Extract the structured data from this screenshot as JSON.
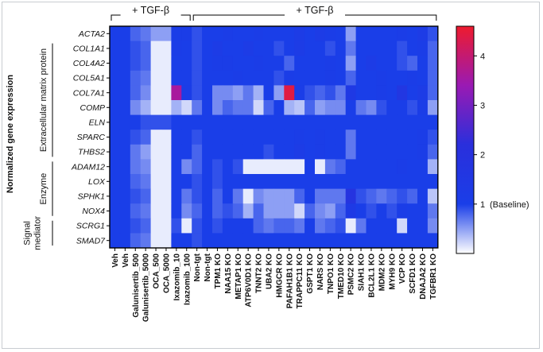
{
  "chart_data": {
    "type": "heatmap",
    "title": "",
    "ylabel": "Normalized gene expression",
    "treatment_label": "+ TGF-β",
    "rows": [
      "ACTA2",
      "COL1A1",
      "COL4A2",
      "COL5A1",
      "COL7A1",
      "COMP",
      "ELN",
      "SPARC",
      "THBS2",
      "ADAM12",
      "LOX",
      "SPHK1",
      "NOX4",
      "SCRG1",
      "SMAD7"
    ],
    "row_groups": [
      {
        "label": "Extracellular matrix protein",
        "rows": [
          "COL1A1",
          "COL4A2",
          "COL5A1",
          "COL7A1",
          "COMP",
          "ELN",
          "SPARC",
          "THBS2"
        ]
      },
      {
        "label": "Enzyme",
        "rows": [
          "ADAM12",
          "LOX",
          "SPHK1",
          "NOX4"
        ]
      },
      {
        "label": "Signal mediator",
        "rows": [
          "SCRG1",
          "SMAD7"
        ]
      }
    ],
    "columns": [
      "Veh",
      "Veh",
      "Galunisertib_500",
      "Galunisertib_5000",
      "OCA_500",
      "OCA_5000",
      "Ixazomib_10",
      "Ixazomib_100",
      "Non-tgt",
      "Non-tgt",
      "TPM1 KO",
      "NAA15 KO",
      "METAP1 KO",
      "ATP6V0D1 KO",
      "TNNT2 KO",
      "UBA2 KO",
      "HMGCR KO",
      "PAFAH1B1 KO",
      "TRAPPC11 KO",
      "GSPT1 KO",
      "NARS KO",
      "TNPO1 KO",
      "TMED10 KO",
      "PSMC2 KO",
      "SIAH1 KO",
      "BCL2L1 KO",
      "MDM2 KO",
      "MYH9 KO",
      "VCP KO",
      "SCFD1 KO",
      "DNAJA2 KO",
      "TGFBR1 KO"
    ],
    "brackets": [
      {
        "label": "+ TGF-β",
        "from": "Veh",
        "to": "Ixazomib_100"
      },
      {
        "label": "+ TGF-β",
        "from": "Non-tgt",
        "to": "TGFBR1 KO"
      }
    ],
    "values": [
      [
        1.0,
        1.0,
        0.8,
        0.7,
        0.5,
        0.5,
        1.1,
        1.1,
        0.9,
        1.0,
        1.0,
        1.1,
        1.0,
        1.0,
        1.1,
        1.0,
        1.0,
        1.0,
        1.2,
        1.0,
        1.2,
        1.1,
        1.0,
        0.5,
        1.0,
        1.0,
        1.0,
        1.0,
        1.1,
        1.0,
        1.2,
        0.9
      ],
      [
        1.0,
        1.0,
        0.9,
        0.8,
        0.1,
        0.1,
        1.1,
        1.0,
        0.9,
        1.0,
        1.2,
        1.0,
        1.0,
        1.2,
        1.0,
        1.0,
        0.9,
        1.0,
        1.2,
        1.0,
        1.0,
        0.9,
        1.0,
        0.7,
        1.0,
        1.0,
        1.0,
        1.0,
        0.9,
        1.0,
        1.1,
        0.8
      ],
      [
        1.0,
        1.0,
        0.9,
        0.8,
        0.1,
        0.1,
        1.0,
        1.0,
        0.9,
        1.0,
        1.1,
        1.1,
        1.0,
        1.0,
        1.1,
        1.0,
        1.0,
        0.8,
        1.0,
        1.0,
        1.0,
        1.1,
        1.0,
        0.5,
        1.0,
        1.2,
        1.0,
        1.0,
        0.9,
        0.8,
        1.0,
        0.8
      ],
      [
        1.0,
        1.0,
        0.8,
        0.7,
        0.1,
        0.1,
        1.0,
        1.0,
        0.9,
        1.0,
        1.0,
        1.0,
        1.1,
        1.0,
        1.0,
        1.0,
        0.9,
        1.1,
        1.0,
        1.0,
        1.0,
        1.1,
        1.0,
        0.8,
        1.0,
        1.0,
        1.1,
        1.0,
        1.0,
        1.1,
        1.0,
        0.8
      ],
      [
        1.0,
        1.0,
        0.8,
        0.6,
        0.1,
        0.1,
        3.6,
        1.1,
        0.9,
        1.0,
        0.6,
        0.6,
        0.5,
        0.7,
        0.4,
        1.0,
        0.5,
        4.4,
        1.1,
        0.9,
        0.8,
        0.9,
        0.7,
        1.4,
        1.0,
        1.0,
        1.1,
        1.0,
        1.6,
        1.0,
        1.2,
        0.8
      ],
      [
        1.0,
        1.0,
        0.6,
        0.4,
        0.1,
        0.1,
        0.4,
        0.2,
        0.7,
        1.0,
        0.6,
        0.8,
        0.7,
        0.7,
        0.2,
        0.8,
        1.0,
        0.4,
        0.3,
        0.8,
        0.5,
        0.6,
        0.6,
        1.0,
        0.7,
        0.6,
        0.9,
        1.0,
        1.0,
        0.9,
        1.1,
        0.5
      ],
      [
        1.0,
        1.0,
        1.0,
        0.9,
        0.9,
        0.9,
        1.0,
        1.0,
        1.0,
        1.0,
        1.0,
        1.0,
        1.0,
        1.0,
        1.0,
        1.0,
        1.0,
        1.0,
        1.0,
        1.0,
        1.0,
        1.0,
        1.0,
        1.0,
        1.0,
        1.0,
        1.0,
        1.0,
        1.0,
        1.0,
        1.0,
        1.0
      ],
      [
        1.0,
        1.0,
        0.9,
        0.8,
        0.1,
        0.1,
        1.0,
        1.0,
        0.9,
        1.0,
        1.0,
        1.0,
        1.0,
        1.0,
        1.0,
        1.0,
        1.0,
        1.0,
        1.1,
        1.0,
        1.1,
        1.0,
        1.0,
        0.7,
        1.0,
        1.0,
        1.0,
        1.0,
        1.0,
        1.0,
        1.1,
        0.9
      ],
      [
        1.0,
        1.0,
        0.7,
        0.5,
        0.1,
        0.1,
        1.0,
        1.0,
        0.8,
        1.0,
        1.0,
        1.0,
        1.0,
        1.0,
        1.0,
        0.9,
        1.0,
        1.0,
        1.2,
        1.0,
        1.1,
        1.0,
        1.0,
        0.7,
        1.0,
        1.0,
        1.0,
        1.0,
        1.0,
        1.0,
        1.1,
        0.8
      ],
      [
        1.0,
        1.0,
        0.7,
        0.6,
        0.1,
        0.1,
        1.0,
        0.6,
        0.8,
        1.0,
        0.9,
        1.0,
        0.9,
        0.1,
        0.1,
        0.1,
        0.1,
        0.1,
        0.1,
        1.0,
        0.1,
        0.7,
        0.8,
        1.0,
        1.0,
        1.0,
        1.0,
        1.0,
        1.1,
        1.0,
        1.0,
        0.4
      ],
      [
        1.0,
        1.0,
        0.8,
        0.7,
        0.1,
        0.1,
        1.0,
        1.0,
        0.9,
        1.0,
        0.9,
        1.0,
        1.0,
        1.0,
        1.0,
        1.0,
        1.0,
        1.0,
        1.0,
        1.0,
        1.0,
        1.0,
        1.0,
        1.0,
        1.0,
        1.0,
        1.0,
        1.0,
        1.0,
        1.0,
        1.0,
        1.0
      ],
      [
        1.0,
        1.0,
        0.9,
        0.8,
        0.1,
        0.1,
        1.0,
        0.7,
        0.9,
        1.0,
        0.8,
        1.0,
        0.7,
        0.1,
        0.6,
        0.5,
        0.5,
        0.5,
        0.8,
        1.0,
        0.7,
        0.7,
        0.7,
        1.8,
        0.9,
        0.8,
        0.7,
        0.8,
        0.9,
        0.8,
        1.0,
        0.3
      ],
      [
        1.0,
        1.0,
        0.8,
        0.7,
        0.1,
        0.1,
        1.0,
        0.6,
        0.8,
        1.0,
        0.8,
        0.9,
        0.8,
        0.4,
        0.8,
        0.5,
        0.5,
        0.5,
        0.2,
        0.8,
        0.6,
        0.5,
        0.8,
        1.3,
        1.0,
        0.9,
        1.0,
        0.9,
        1.1,
        1.0,
        1.0,
        0.7
      ],
      [
        1.0,
        1.0,
        0.9,
        0.8,
        0.1,
        0.1,
        0.9,
        0.1,
        0.9,
        1.0,
        0.9,
        1.0,
        1.0,
        1.0,
        0.8,
        0.7,
        0.8,
        0.8,
        0.7,
        1.0,
        0.7,
        0.8,
        0.9,
        0.1,
        0.7,
        1.0,
        1.0,
        1.0,
        0.2,
        1.0,
        1.0,
        0.6
      ],
      [
        1.0,
        1.0,
        0.8,
        0.7,
        0.1,
        0.1,
        1.0,
        1.0,
        0.9,
        1.0,
        1.0,
        1.0,
        1.0,
        1.0,
        1.0,
        1.0,
        1.0,
        1.0,
        1.0,
        1.0,
        1.0,
        1.0,
        1.0,
        1.0,
        1.0,
        1.0,
        1.0,
        1.0,
        1.0,
        1.0,
        1.0,
        1.0
      ]
    ],
    "vmin": 0,
    "vmax": 4.6,
    "colorbar": {
      "ticks": [
        "4",
        "3",
        "2",
        "1"
      ],
      "tick_values": [
        4,
        3,
        2,
        1
      ],
      "baseline_note": "(Baseline)",
      "colors": {
        "low": "#ffffff",
        "mid": "#1a3ee8",
        "high": "#ee1b2e"
      }
    },
    "grid": false,
    "legend": "right"
  }
}
